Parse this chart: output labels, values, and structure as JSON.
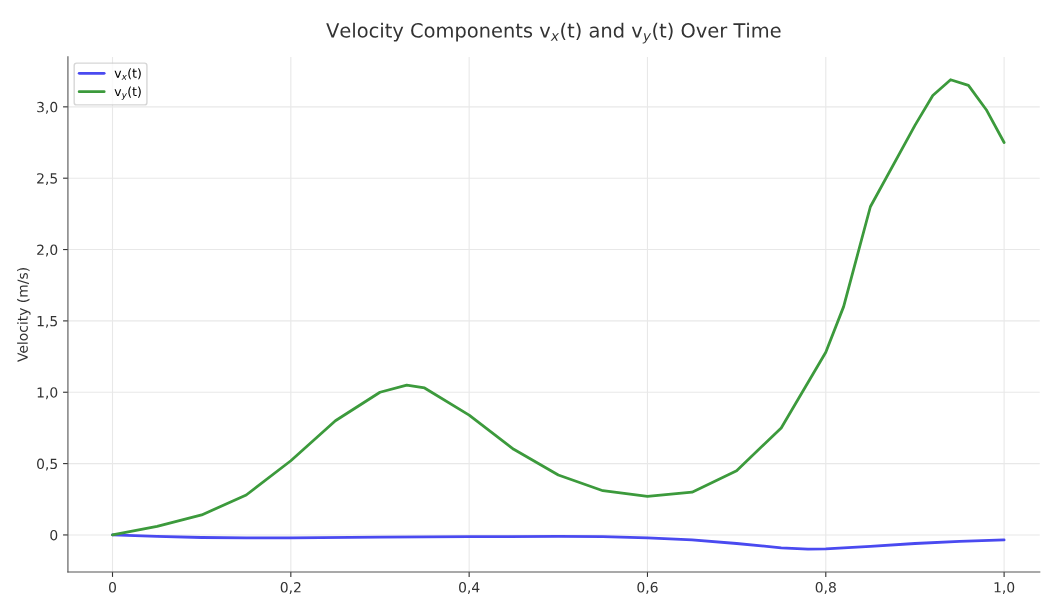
{
  "chart_data": {
    "type": "line",
    "title": "Velocity Components v$_{x}$(t) and v$_{y}$(t) Over Time",
    "ylabel": "Velocity (m/s)",
    "series": [
      {
        "name": "v$_{x}$(t)",
        "color": "#4a4af0",
        "x": [
          0,
          0.05,
          0.1,
          0.15,
          0.2,
          0.3,
          0.4,
          0.5,
          0.55,
          0.6,
          0.65,
          0.7,
          0.75,
          0.78,
          0.8,
          0.85,
          0.9,
          0.95,
          1.0
        ],
        "values": [
          0,
          -0.01,
          -0.018,
          -0.02,
          -0.02,
          -0.015,
          -0.012,
          -0.01,
          -0.012,
          -0.02,
          -0.035,
          -0.06,
          -0.09,
          -0.1,
          -0.098,
          -0.08,
          -0.06,
          -0.045,
          -0.035
        ]
      },
      {
        "name": "v$_{y}$(t)",
        "color": "#3c9a3c",
        "x": [
          0,
          0.05,
          0.1,
          0.15,
          0.2,
          0.25,
          0.3,
          0.33,
          0.35,
          0.4,
          0.45,
          0.5,
          0.55,
          0.6,
          0.65,
          0.7,
          0.75,
          0.8,
          0.82,
          0.85,
          0.9,
          0.92,
          0.94,
          0.96,
          0.98,
          1.0
        ],
        "values": [
          0,
          0.06,
          0.14,
          0.28,
          0.52,
          0.8,
          1.0,
          1.05,
          1.03,
          0.84,
          0.6,
          0.42,
          0.31,
          0.27,
          0.3,
          0.45,
          0.75,
          1.28,
          1.6,
          2.3,
          2.87,
          3.08,
          3.19,
          3.15,
          2.98,
          2.75
        ]
      }
    ],
    "xlim": [
      -0.05,
      1.04
    ],
    "ylim": [
      -0.26,
      3.35
    ],
    "xticks": [
      0,
      {
        "value": 0.2,
        "label": "0,2"
      },
      {
        "value": 0.4,
        "label": "0,4"
      },
      {
        "value": 0.6,
        "label": "0,6"
      },
      {
        "value": 0.8,
        "label": "0,8"
      },
      {
        "value": 1.0,
        "label": "1,0"
      }
    ],
    "yticks": [
      0,
      {
        "value": 0.5,
        "label": "0,5"
      },
      {
        "value": 1.0,
        "label": "1,0"
      },
      {
        "value": 1.5,
        "label": "1,5"
      },
      {
        "value": 2.0,
        "label": "2,0"
      },
      {
        "value": 2.5,
        "label": "2,5"
      },
      {
        "value": 3.0,
        "label": "3,0"
      }
    ],
    "grid": true,
    "legend": "top left"
  }
}
